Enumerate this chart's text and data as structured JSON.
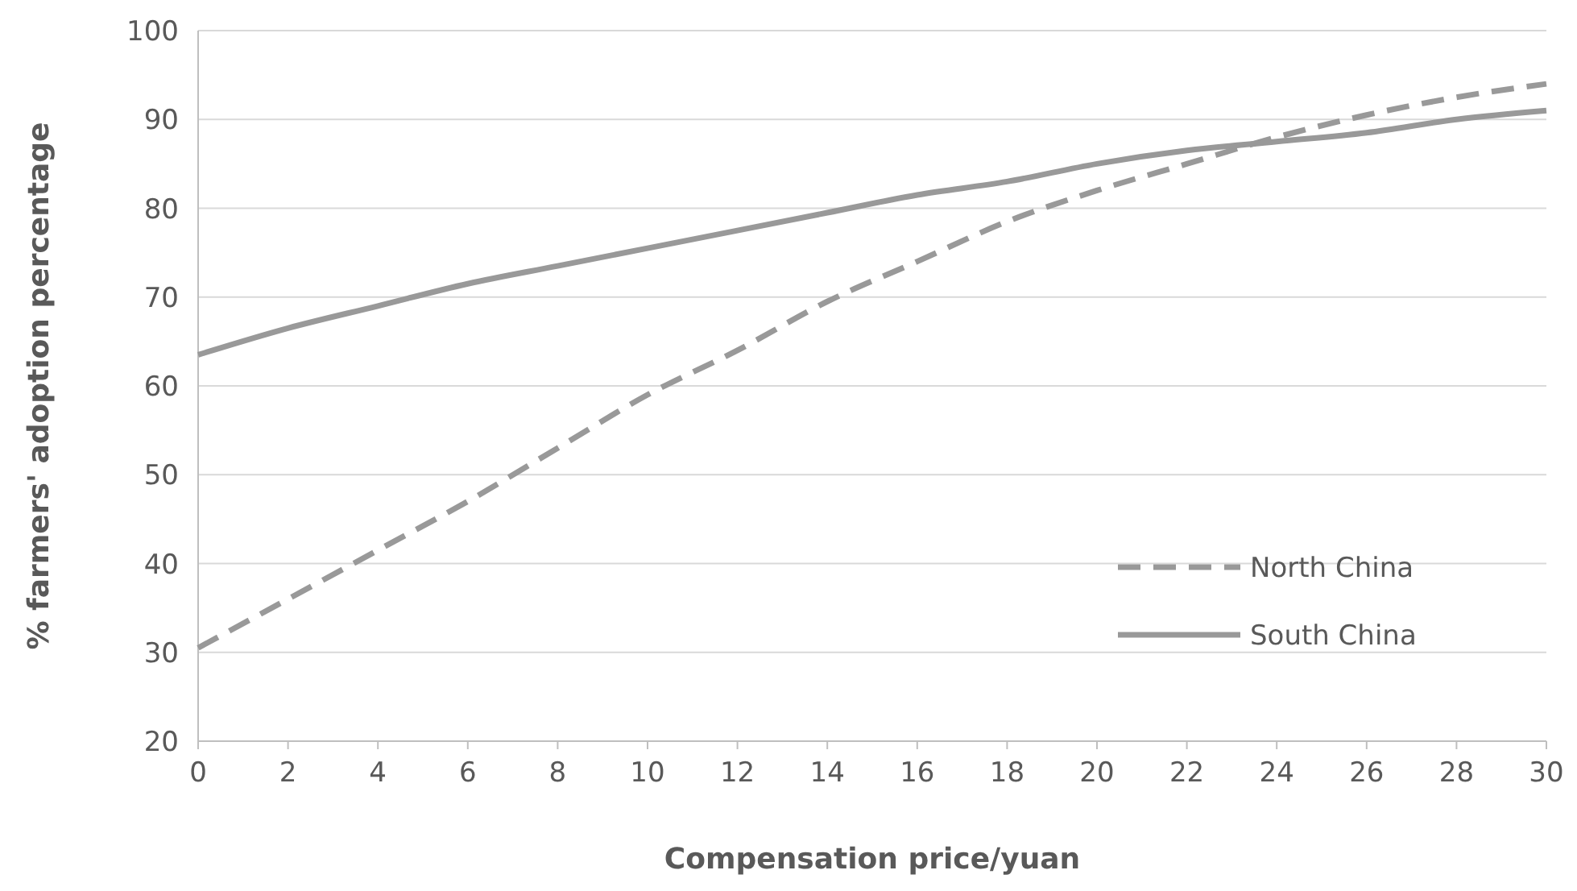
{
  "chart_data": {
    "type": "line",
    "xlabel": "Compensation price/yuan",
    "ylabel": "% farmers' adoption percentage",
    "x": [
      0,
      2,
      4,
      6,
      8,
      10,
      12,
      14,
      16,
      18,
      20,
      22,
      24,
      26,
      28,
      30
    ],
    "xlim": [
      0,
      30
    ],
    "xticks": [
      0,
      2,
      4,
      6,
      8,
      10,
      12,
      14,
      16,
      18,
      20,
      22,
      24,
      26,
      28,
      30
    ],
    "ylim": [
      20,
      100
    ],
    "yticks": [
      20,
      30,
      40,
      50,
      60,
      70,
      80,
      90,
      100
    ],
    "grid": "y",
    "legend": "right",
    "marker": "none",
    "series": [
      {
        "name": "North China",
        "color": "#999999",
        "line_style": "dashed",
        "values": [
          30.5,
          36,
          41.5,
          47,
          53,
          59,
          64,
          69.5,
          74,
          78.5,
          82,
          85,
          88,
          90.5,
          92.5,
          94
        ]
      },
      {
        "name": "South China",
        "color": "#999999",
        "line_style": "solid",
        "values": [
          63.5,
          66.5,
          69,
          71.5,
          73.5,
          75.5,
          77.5,
          79.5,
          81.5,
          83,
          85,
          86.5,
          87.5,
          88.5,
          90,
          91
        ]
      }
    ]
  }
}
